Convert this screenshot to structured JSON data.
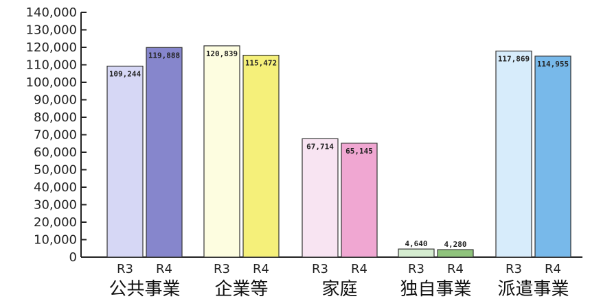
{
  "chart_data": {
    "type": "bar",
    "title": "",
    "xlabel": "",
    "ylabel": "",
    "ylim": [
      0,
      140000
    ],
    "ytick_step": 10000,
    "yticks": [
      "0",
      "10,000",
      "20,000",
      "30,000",
      "40,000",
      "50,000",
      "60,000",
      "70,000",
      "80,000",
      "90,000",
      "100,000",
      "110,000",
      "120,000",
      "130,000",
      "140,000"
    ],
    "grid": false,
    "legend": "none",
    "categories": [
      "公共事業",
      "企業等",
      "家庭",
      "独自事業",
      "派遣事業"
    ],
    "series": [
      {
        "name": "R3",
        "values": [
          109244,
          120839,
          67714,
          4640,
          117869
        ]
      },
      {
        "name": "R4",
        "values": [
          119888,
          115472,
          65145,
          4280,
          114955
        ]
      }
    ],
    "value_labels": [
      [
        "109,244",
        "119,888"
      ],
      [
        "120,839",
        "115,472"
      ],
      [
        "67,714",
        "65,145"
      ],
      [
        "4,640",
        "4,280"
      ],
      [
        "117,869",
        "114,955"
      ]
    ],
    "colors": [
      [
        "#d6d7f5",
        "#8686cc"
      ],
      [
        "#fdfde0",
        "#f5f07a"
      ],
      [
        "#f8e4f2",
        "#f0a7d2"
      ],
      [
        "#d5ecd0",
        "#8fc37c"
      ],
      [
        "#d7ecfb",
        "#78b9ea"
      ]
    ]
  }
}
